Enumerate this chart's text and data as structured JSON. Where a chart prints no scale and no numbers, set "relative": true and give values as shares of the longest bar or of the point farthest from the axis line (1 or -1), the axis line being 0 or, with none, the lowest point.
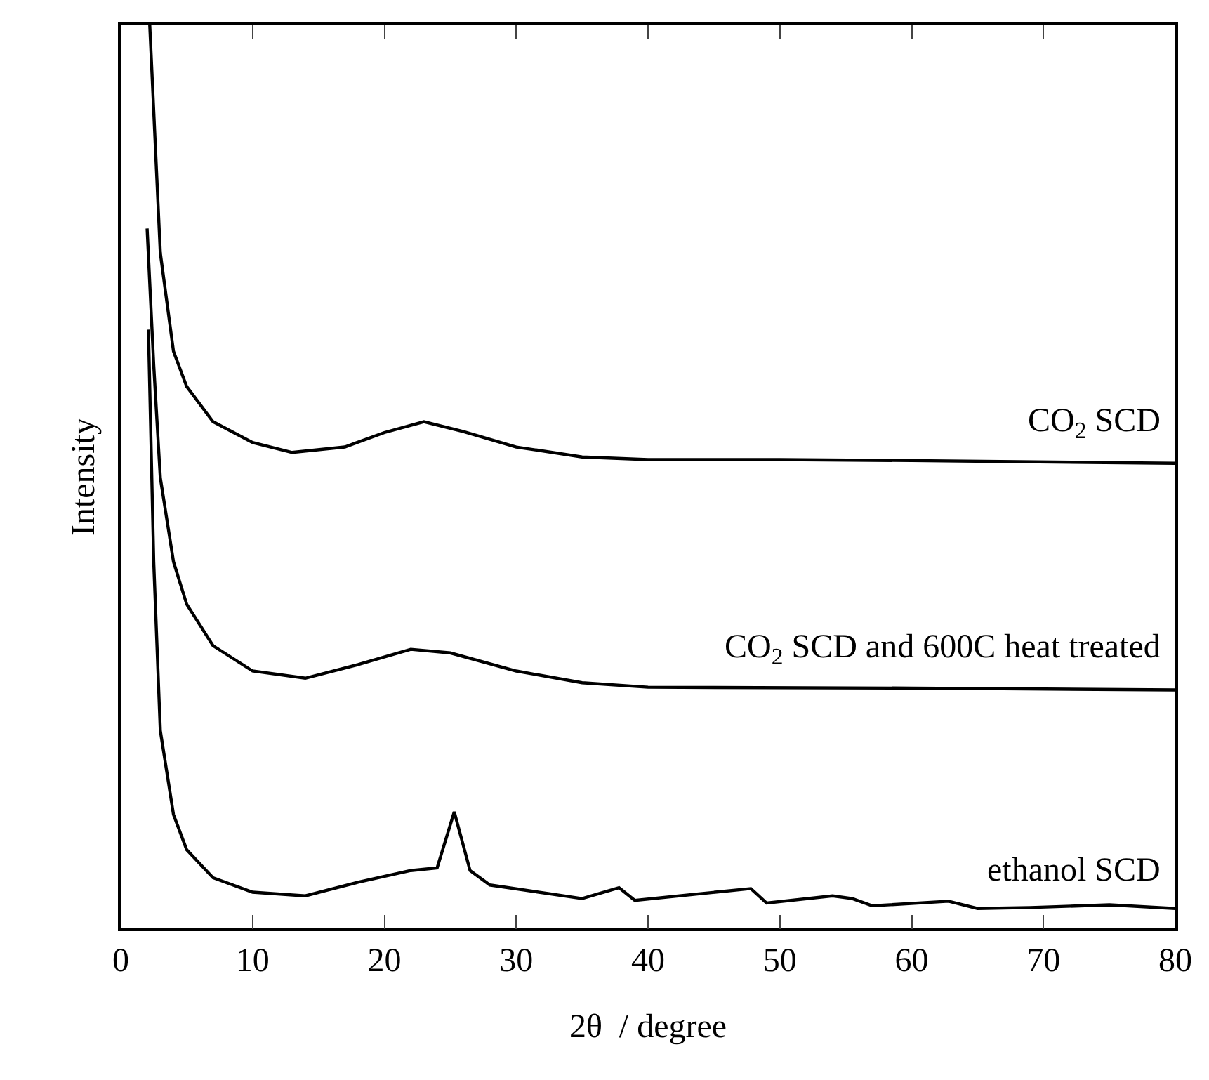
{
  "chart_data": {
    "type": "line",
    "relative": true,
    "xlabel": "2θ  / degree",
    "ylabel": "Intensity",
    "xlim": [
      0,
      80
    ],
    "xticks": [
      0,
      10,
      20,
      30,
      40,
      50,
      60,
      70,
      80
    ],
    "tick_labels": "x",
    "legend": false,
    "marker": "none",
    "line_style": "solid",
    "series": [
      {
        "name": "CO$_{2}$ SCD",
        "color": "#000000",
        "x": [
          2.2,
          3,
          4,
          5,
          7,
          10,
          13,
          17,
          20,
          23,
          26,
          30,
          35,
          40,
          50,
          60,
          80
        ],
        "values": [
          1.0,
          0.748,
          0.639,
          0.6,
          0.561,
          0.538,
          0.527,
          0.533,
          0.549,
          0.561,
          0.55,
          0.533,
          0.522,
          0.519,
          0.519,
          0.518,
          0.515
        ]
      },
      {
        "name": "CO$_{2}$ SCD and 600C heat treated",
        "color": "#000000",
        "x": [
          2,
          2.5,
          3,
          4,
          5,
          7,
          10,
          14,
          18,
          22,
          25,
          30,
          35,
          40,
          60,
          80
        ],
        "values": [
          0.775,
          0.624,
          0.499,
          0.406,
          0.359,
          0.313,
          0.285,
          0.277,
          0.292,
          0.309,
          0.305,
          0.285,
          0.272,
          0.267,
          0.266,
          0.264
        ]
      },
      {
        "name": "ethanol SCD",
        "color": "#000000",
        "x": [
          2.1,
          2.5,
          3,
          4,
          5,
          7,
          10,
          14,
          18,
          22,
          24,
          25.3,
          26.5,
          28,
          35,
          37.8,
          39,
          47.8,
          49,
          54,
          55.5,
          57,
          62.8,
          65,
          69,
          75,
          80
        ],
        "values": [
          0.663,
          0.406,
          0.219,
          0.126,
          0.087,
          0.056,
          0.04,
          0.036,
          0.051,
          0.064,
          0.067,
          0.129,
          0.064,
          0.048,
          0.033,
          0.045,
          0.031,
          0.044,
          0.028,
          0.036,
          0.033,
          0.025,
          0.03,
          0.022,
          0.023,
          0.026,
          0.022
        ]
      }
    ]
  }
}
